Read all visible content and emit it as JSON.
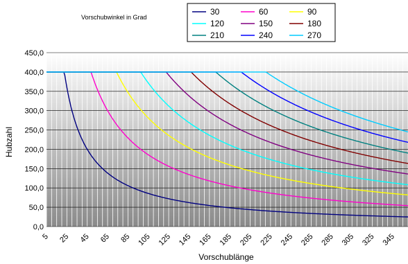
{
  "chart_data": {
    "type": "line",
    "title": "",
    "annotation": "Vorschubwinkel in Grad",
    "xlabel": "Vorschublänge",
    "ylabel": "Hubzahl",
    "xlim": [
      5,
      360
    ],
    "ylim": [
      0,
      450
    ],
    "xticks": [
      5,
      25,
      45,
      65,
      85,
      105,
      125,
      145,
      165,
      185,
      205,
      225,
      245,
      265,
      285,
      305,
      325,
      345
    ],
    "yticks": [
      "0,0",
      "50,0",
      "100,0",
      "150,0",
      "200,0",
      "250,0",
      "300,0",
      "350,0",
      "400,0",
      "450,0"
    ],
    "grid": true,
    "legend": "top",
    "max_stroke": 400,
    "series": [
      {
        "name": "30",
        "color": "#000080",
        "constant": 9000
      },
      {
        "name": "60",
        "color": "#ff00cc",
        "constant": 19500
      },
      {
        "name": "90",
        "color": "#ffff00",
        "constant": 29500
      },
      {
        "name": "120",
        "color": "#00ffff",
        "constant": 39000
      },
      {
        "name": "150",
        "color": "#800080",
        "constant": 49000
      },
      {
        "name": "180",
        "color": "#800000",
        "constant": 58800
      },
      {
        "name": "210",
        "color": "#008080",
        "constant": 68500
      },
      {
        "name": "240",
        "color": "#0000ff",
        "constant": 78500
      },
      {
        "name": "270",
        "color": "#00ccff",
        "constant": 88200
      }
    ]
  }
}
